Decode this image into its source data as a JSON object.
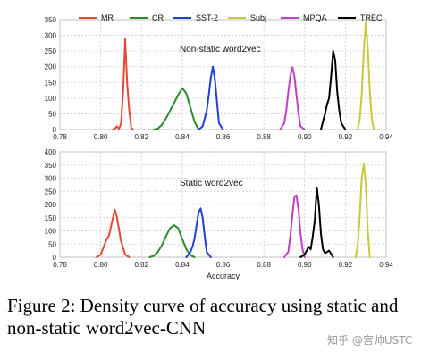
{
  "caption": "Figure 2: Density curve of accuracy using static and non-static word2vec-CNN",
  "watermark": "知乎 @宫帅USTC",
  "chart_data": {
    "type": "line",
    "legend": {
      "placement": "top",
      "entries": [
        {
          "name": "MR",
          "color": "#e24a33"
        },
        {
          "name": "CR",
          "color": "#2c8a2c"
        },
        {
          "name": "SST-2",
          "color": "#1f3fd8"
        },
        {
          "name": "Subj",
          "color": "#c8c83a"
        },
        {
          "name": "MPQA",
          "color": "#c23fc2"
        },
        {
          "name": "TREC",
          "color": "#000000"
        }
      ]
    },
    "shared_xlabel": "Accuracy",
    "grid": true,
    "panels": [
      {
        "title": "Non-static word2vec",
        "xlim": [
          0.78,
          0.94
        ],
        "ylim": [
          0,
          350
        ],
        "xticks": [
          "0.78",
          "0.80",
          "0.82",
          "0.84",
          "0.86",
          "0.88",
          "0.90",
          "0.92",
          "0.94"
        ],
        "yticks": [
          "0",
          "50",
          "100",
          "150",
          "200",
          "250",
          "300",
          "350"
        ],
        "series": [
          {
            "name": "MR",
            "color": "#e24a33",
            "x": [
              0.806,
              0.807,
              0.808,
              0.809,
              0.81,
              0.811,
              0.812,
              0.813,
              0.814,
              0.815,
              0.816
            ],
            "y": [
              0,
              3,
              10,
              2,
              20,
              120,
              288,
              145,
              60,
              5,
              0
            ]
          },
          {
            "name": "CR",
            "color": "#2c8a2c",
            "x": [
              0.826,
              0.828,
              0.83,
              0.832,
              0.834,
              0.836,
              0.838,
              0.84,
              0.842,
              0.844,
              0.846,
              0.848
            ],
            "y": [
              0,
              3,
              15,
              35,
              60,
              85,
              110,
              132,
              115,
              70,
              25,
              0
            ]
          },
          {
            "name": "SST-2",
            "color": "#1f3fd8",
            "x": [
              0.848,
              0.85,
              0.852,
              0.853,
              0.854,
              0.855,
              0.856,
              0.857,
              0.858,
              0.86
            ],
            "y": [
              0,
              10,
              60,
              110,
              165,
              200,
              160,
              90,
              20,
              0
            ]
          },
          {
            "name": "MPQA",
            "color": "#c23fc2",
            "x": [
              0.888,
              0.89,
              0.891,
              0.892,
              0.893,
              0.894,
              0.895,
              0.896,
              0.897,
              0.898,
              0.9
            ],
            "y": [
              0,
              20,
              60,
              120,
              170,
              198,
              170,
              110,
              50,
              10,
              0
            ]
          },
          {
            "name": "TREC",
            "color": "#000000",
            "x": [
              0.908,
              0.91,
              0.911,
              0.912,
              0.913,
              0.914,
              0.915,
              0.916,
              0.917,
              0.918,
              0.92
            ],
            "y": [
              0,
              50,
              80,
              100,
              170,
              250,
              220,
              120,
              60,
              20,
              0
            ]
          },
          {
            "name": "Subj",
            "color": "#c8c83a",
            "x": [
              0.926,
              0.927,
              0.928,
              0.929,
              0.93,
              0.931,
              0.932,
              0.933,
              0.934
            ],
            "y": [
              0,
              30,
              110,
              250,
              340,
              260,
              120,
              30,
              0
            ]
          }
        ]
      },
      {
        "title": "Static word2vec",
        "xlim": [
          0.78,
          0.94
        ],
        "ylim": [
          0,
          400
        ],
        "xticks": [
          "0.78",
          "0.80",
          "0.82",
          "0.84",
          "0.86",
          "0.88",
          "0.90",
          "0.92",
          "0.94"
        ],
        "yticks": [
          "0",
          "50",
          "100",
          "150",
          "200",
          "250",
          "300",
          "350",
          "400"
        ],
        "series": [
          {
            "name": "MR",
            "color": "#e24a33",
            "x": [
              0.798,
              0.8,
              0.802,
              0.803,
              0.804,
              0.806,
              0.807,
              0.808,
              0.81,
              0.812,
              0.814
            ],
            "y": [
              0,
              10,
              50,
              70,
              80,
              150,
              180,
              150,
              60,
              10,
              0
            ]
          },
          {
            "name": "CR",
            "color": "#2c8a2c",
            "x": [
              0.824,
              0.826,
              0.828,
              0.83,
              0.832,
              0.834,
              0.836,
              0.838,
              0.84,
              0.842,
              0.844,
              0.846
            ],
            "y": [
              0,
              5,
              20,
              45,
              80,
              110,
              122,
              110,
              70,
              30,
              8,
              0
            ]
          },
          {
            "name": "SST-2",
            "color": "#1f3fd8",
            "x": [
              0.842,
              0.844,
              0.845,
              0.846,
              0.847,
              0.848,
              0.849,
              0.85,
              0.851,
              0.852,
              0.854
            ],
            "y": [
              0,
              20,
              40,
              70,
              120,
              170,
              185,
              150,
              80,
              20,
              0
            ]
          },
          {
            "name": "MPQA",
            "color": "#c23fc2",
            "x": [
              0.89,
              0.892,
              0.893,
              0.894,
              0.895,
              0.896,
              0.897,
              0.898,
              0.899,
              0.9
            ],
            "y": [
              0,
              20,
              80,
              160,
              230,
              235,
              180,
              90,
              30,
              0
            ]
          },
          {
            "name": "TREC",
            "color": "#000000",
            "x": [
              0.898,
              0.9,
              0.902,
              0.903,
              0.904,
              0.905,
              0.906,
              0.907,
              0.908,
              0.909,
              0.91,
              0.912,
              0.914
            ],
            "y": [
              0,
              10,
              40,
              30,
              80,
              140,
              265,
              200,
              90,
              30,
              15,
              25,
              0
            ]
          },
          {
            "name": "Subj",
            "color": "#c8c83a",
            "x": [
              0.925,
              0.926,
              0.927,
              0.928,
              0.929,
              0.93,
              0.931,
              0.932
            ],
            "y": [
              0,
              40,
              150,
              300,
              355,
              280,
              100,
              0
            ]
          }
        ]
      }
    ]
  }
}
